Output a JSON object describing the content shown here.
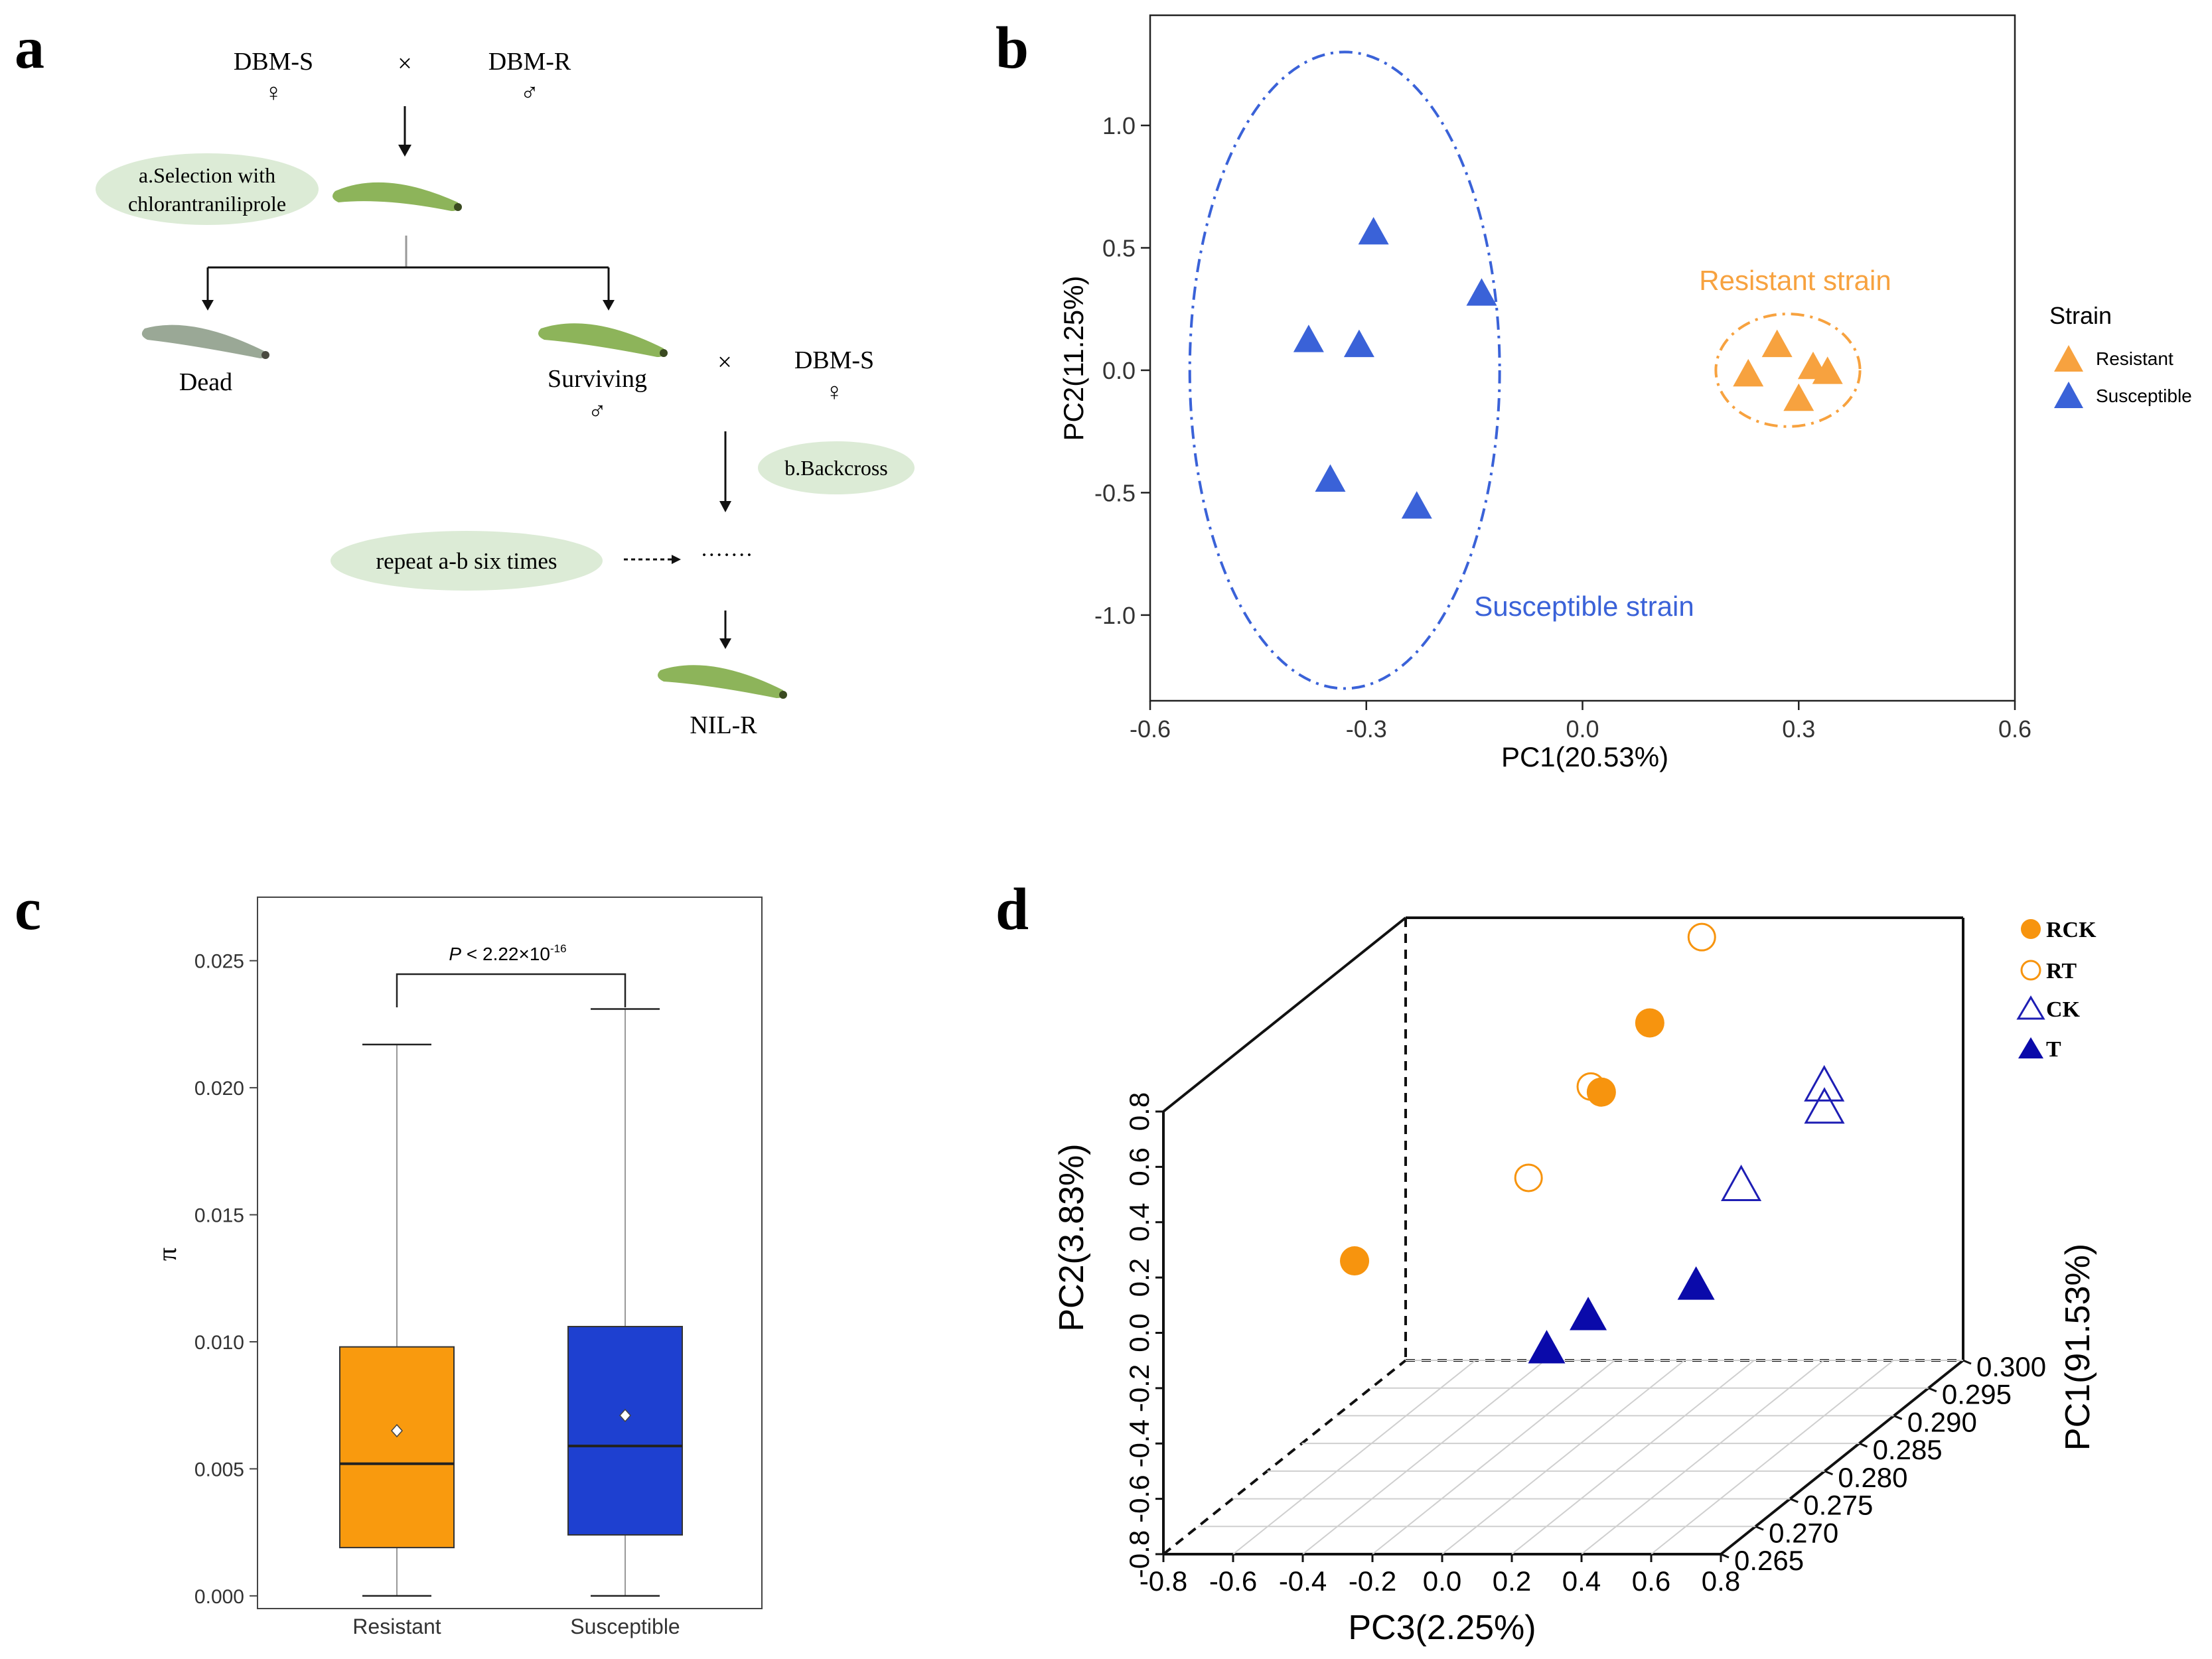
{
  "panel_labels": [
    "a",
    "b",
    "c",
    "d"
  ],
  "colors": {
    "resistant": "#F7A23F",
    "susceptible": "#3A62D8",
    "box_resistant": "#F99A0E",
    "box_susceptible": "#1E40D0",
    "rck": "#F7940E",
    "ck": "#1E1EB4",
    "t": "#0A0AAA",
    "leaf": "#DCEBD6",
    "larva": "#8DB45A"
  },
  "panel_a": {
    "parent_female": "DBM-S",
    "parent_male": "DBM-R",
    "cross": "×",
    "female_symbol": "♀",
    "male_symbol": "♂",
    "step_a": [
      "a.Selection  with",
      "chlorantraniliprole"
    ],
    "dead": "Dead",
    "surviving": "Surviving",
    "backcross_parent": "DBM-S",
    "step_b": "b.Backcross",
    "repeat": "repeat a-b six times",
    "dots": "·······",
    "result": "NIL-R"
  },
  "chart_data": [
    {
      "panel": "b",
      "type": "scatter",
      "xlabel": "PC1(20.53%)",
      "ylabel": "PC2(11.25%)",
      "xlim": [
        -0.6,
        0.6
      ],
      "ylim": [
        -1.35,
        1.45
      ],
      "xticks": [
        "-0.6",
        "-0.3",
        "0.0",
        "0.3",
        "0.6"
      ],
      "xtick_values": [
        -0.6,
        -0.3,
        0.0,
        0.3,
        0.6
      ],
      "yticks": [
        "-1.0",
        "-0.5",
        "0.0",
        "0.5",
        "1.0"
      ],
      "ytick_values": [
        -1.0,
        -0.5,
        0.0,
        0.5,
        1.0
      ],
      "marker": "triangle",
      "legend_title": "Strain",
      "legend_position": "right",
      "series": [
        {
          "name": "Resistant",
          "color": "#F7A23F",
          "x": [
            0.23,
            0.27,
            0.32,
            0.3,
            0.34
          ],
          "y": [
            -0.01,
            0.11,
            0.02,
            -0.11,
            0.0
          ]
        },
        {
          "name": "Susceptible",
          "color": "#3A62D8",
          "x": [
            -0.29,
            -0.14,
            -0.38,
            -0.31,
            -0.35,
            -0.23
          ],
          "y": [
            0.57,
            0.32,
            0.13,
            0.11,
            -0.44,
            -0.55
          ]
        }
      ],
      "annotations": [
        {
          "text": "Resistant strain",
          "color": "#F7A23F"
        },
        {
          "text": "Susceptible strain",
          "color": "#3A62D8"
        }
      ],
      "ellipses": [
        {
          "group": "Susceptible",
          "cx": -0.33,
          "cy": 0.0,
          "rx": 0.215,
          "ry": 1.3
        },
        {
          "group": "Resistant",
          "cx": 0.285,
          "cy": 0.0,
          "rx": 0.1,
          "ry": 0.23
        }
      ]
    },
    {
      "panel": "c",
      "type": "box",
      "ylabel": "π",
      "ylim": [
        -0.0005,
        0.0275
      ],
      "yticks": [
        "0.000",
        "0.005",
        "0.010",
        "0.015",
        "0.020",
        "0.025"
      ],
      "ytick_values": [
        0.0,
        0.005,
        0.01,
        0.015,
        0.02,
        0.025
      ],
      "categories": [
        "Resistant",
        "Susceptible"
      ],
      "boxes": [
        {
          "name": "Resistant",
          "whisker_low": 0.0,
          "q1": 0.0019,
          "median": 0.0052,
          "q3": 0.0098,
          "whisker_high": 0.0217,
          "mean": 0.0065,
          "color": "#F99A0E"
        },
        {
          "name": "Susceptible",
          "whisker_low": 0.0,
          "q1": 0.0024,
          "median": 0.0059,
          "q3": 0.0106,
          "whisker_high": 0.0231,
          "mean": 0.0071,
          "color": "#1E40D0"
        }
      ],
      "significance": {
        "prefix": "P",
        "text": " < 2.22×10",
        "exponent": "-16"
      }
    },
    {
      "panel": "d",
      "type": "scatter3d",
      "xlabel": "PC3(2.25%)",
      "ylabel": "PC2(3.83%)",
      "zlabel": "PC1(91.53%)",
      "xticks": [
        "-0.8",
        "-0.6",
        "-0.4",
        "-0.2",
        "0.0",
        "0.2",
        "0.4",
        "0.6",
        "0.8"
      ],
      "xtick_values": [
        -0.8,
        -0.6,
        -0.4,
        -0.2,
        0.0,
        0.2,
        0.4,
        0.6,
        0.8
      ],
      "yticks": [
        "-0.8",
        "-0.6",
        "-0.4",
        "-0.2",
        "0.0",
        "0.2",
        "0.4",
        "0.6",
        "0.8"
      ],
      "ytick_values": [
        -0.8,
        -0.6,
        -0.4,
        -0.2,
        0.0,
        0.2,
        0.4,
        0.6,
        0.8
      ],
      "zticks": [
        "0.265",
        "0.270",
        "0.275",
        "0.280",
        "0.285",
        "0.290",
        "0.295",
        "0.300"
      ],
      "ztick_values": [
        0.265,
        0.27,
        0.275,
        0.28,
        0.285,
        0.29,
        0.295,
        0.3
      ],
      "legend_position": "top-right",
      "series": [
        {
          "name": "RCK",
          "marker": "circle",
          "filled": true,
          "color": "#F7940E",
          "points": [
            [
              -0.45,
              0.06,
              0.275
            ],
            [
              0.0,
              0.52,
              0.295
            ],
            [
              0.0,
              0.41,
              0.288
            ]
          ]
        },
        {
          "name": "RT",
          "marker": "circle",
          "filled": false,
          "color": "#F7940E",
          "points": [
            [
              0.05,
              0.73,
              0.3
            ],
            [
              -0.05,
              0.41,
              0.289
            ],
            [
              -0.05,
              0.26,
              0.28
            ]
          ]
        },
        {
          "name": "CK",
          "marker": "triangle",
          "filled": false,
          "color": "#1E1EB4",
          "points": [
            [
              0.6,
              0.4,
              0.29
            ],
            [
              0.68,
              0.4,
              0.286
            ],
            [
              0.6,
              0.28,
              0.278
            ]
          ]
        },
        {
          "name": "T",
          "marker": "triangle",
          "filled": true,
          "color": "#0A0AAA",
          "points": [
            [
              0.3,
              -0.05,
              0.271
            ],
            [
              0.55,
              0.0,
              0.274
            ],
            [
              0.3,
              -0.05,
              0.265
            ]
          ]
        }
      ]
    }
  ]
}
